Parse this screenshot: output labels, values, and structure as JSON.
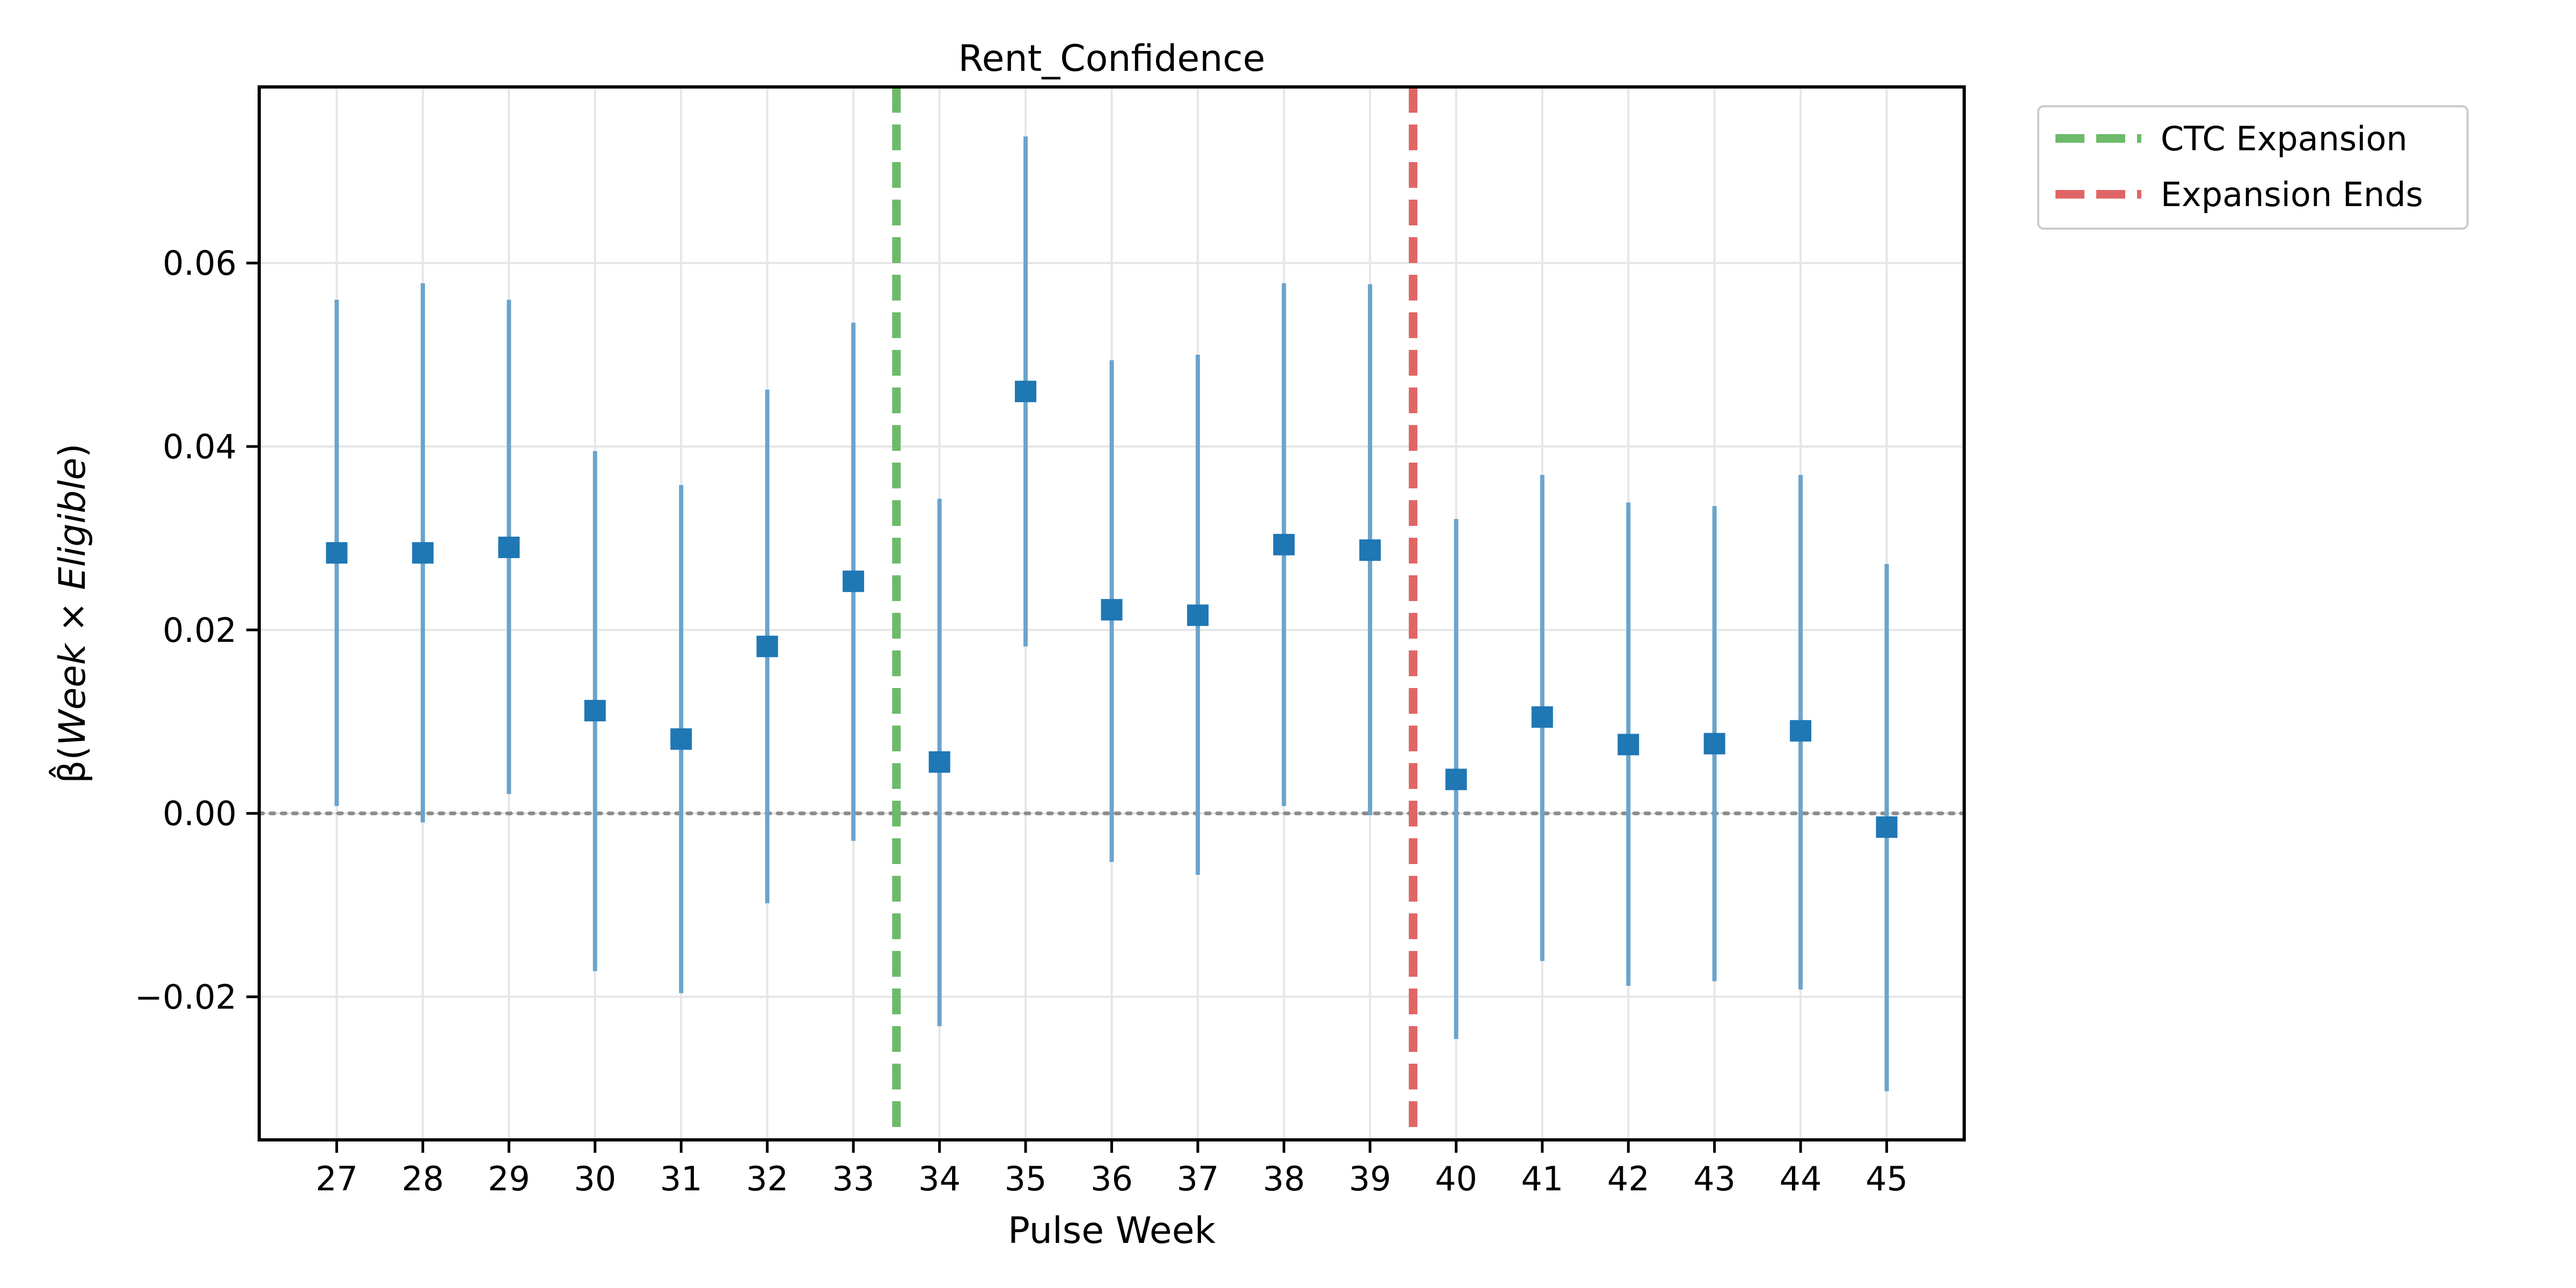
{
  "chart_data": {
    "type": "scatter",
    "title": "Rent_Confidence",
    "xlabel": "Pulse Week",
    "ylabel_parts": [
      "β̂(",
      "Week",
      " × ",
      "Eligible",
      ")"
    ],
    "x": [
      27,
      28,
      29,
      30,
      31,
      32,
      33,
      34,
      35,
      36,
      37,
      38,
      39,
      40,
      41,
      42,
      43,
      44,
      45
    ],
    "x_tick_labels": [
      "27",
      "28",
      "29",
      "30",
      "31",
      "32",
      "33",
      "34",
      "35",
      "36",
      "37",
      "38",
      "39",
      "40",
      "41",
      "42",
      "43",
      "44",
      "45"
    ],
    "series": [
      {
        "estimate": [
          0.0284,
          0.0284,
          0.029,
          0.0112,
          0.0081,
          0.0182,
          0.0253,
          0.0056,
          0.046,
          0.0222,
          0.0216,
          0.0293,
          0.0287,
          0.0037,
          0.0105,
          0.0075,
          0.0076,
          0.009,
          -0.0015
        ],
        "ci_low": [
          0.0008,
          -0.001,
          0.0021,
          -0.0172,
          -0.0196,
          -0.0098,
          -0.003,
          -0.0232,
          0.0182,
          -0.0053,
          -0.0067,
          0.0008,
          -0.0002,
          -0.0246,
          -0.0161,
          -0.0188,
          -0.0183,
          -0.0192,
          -0.0303
        ],
        "ci_high": [
          0.056,
          0.0578,
          0.056,
          0.0395,
          0.0358,
          0.0462,
          0.0535,
          0.0343,
          0.0738,
          0.0494,
          0.05,
          0.0578,
          0.0577,
          0.0321,
          0.0369,
          0.0339,
          0.0335,
          0.0369,
          0.0272
        ]
      }
    ],
    "xlim": [
      26.1,
      45.9
    ],
    "ylim": [
      -0.0356,
      0.0792
    ],
    "y_ticks": [
      -0.02,
      0.0,
      0.02,
      0.04,
      0.06
    ],
    "y_tick_labels": [
      "−0.02",
      "0.00",
      "0.02",
      "0.04",
      "0.06"
    ],
    "vertical_lines": [
      {
        "x": 33.5,
        "label": "CTC Expansion",
        "color": "#6cba6a"
      },
      {
        "x": 39.5,
        "label": "Expansion Ends",
        "color": "#e06666"
      }
    ],
    "zero_line": 0,
    "grid": true,
    "legend_position": "outside-top-right",
    "colors": {
      "marker": "#1f77b4",
      "errorbar": "#6ba4cc",
      "zero_line": "#8c8c8c",
      "grid": "#e6e6e6"
    }
  }
}
